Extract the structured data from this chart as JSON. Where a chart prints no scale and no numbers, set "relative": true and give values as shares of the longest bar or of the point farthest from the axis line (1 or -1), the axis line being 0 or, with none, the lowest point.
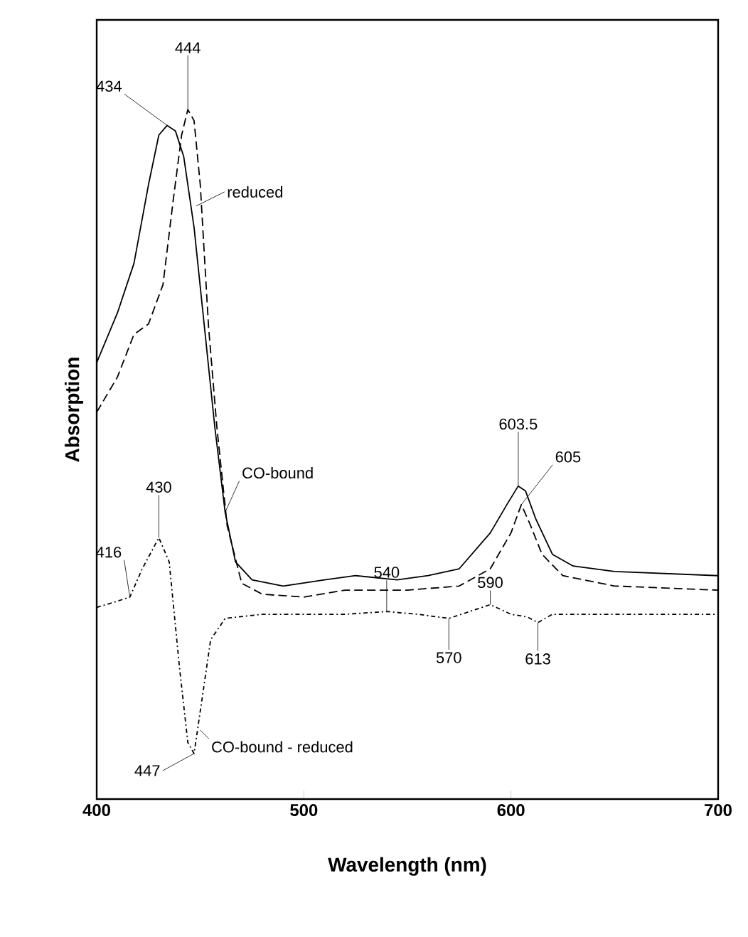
{
  "chart_data": {
    "type": "line",
    "relative": true,
    "xlabel": "Wavelength (nm)",
    "ylabel": "Absorption",
    "xlim": [
      400,
      700
    ],
    "xticks": [
      400,
      500,
      600,
      700
    ],
    "marker": "none",
    "series": [
      {
        "color": "#000000",
        "line_style": "solid",
        "x": [
          400,
          410,
          418,
          425,
          430,
          434,
          438,
          442,
          447,
          452,
          457,
          462,
          467,
          475,
          490,
          510,
          525,
          545,
          560,
          575,
          590,
          598,
          603.5,
          607,
          612,
          620,
          630,
          650,
          700
        ],
        "values": [
          0.633,
          0.705,
          0.777,
          0.891,
          0.963,
          0.977,
          0.969,
          0.932,
          0.829,
          0.685,
          0.54,
          0.416,
          0.344,
          0.318,
          0.309,
          0.318,
          0.324,
          0.318,
          0.324,
          0.334,
          0.386,
          0.427,
          0.454,
          0.447,
          0.406,
          0.355,
          0.338,
          0.33,
          0.324
        ]
      },
      {
        "color": "#000000",
        "line_style": "dashed",
        "x": [
          400,
          410,
          418,
          425,
          432,
          437,
          441,
          444,
          447,
          450,
          454,
          458,
          463,
          470,
          480,
          500,
          520,
          550,
          575,
          590,
          600,
          605,
          609,
          615,
          625,
          650,
          700
        ],
        "values": [
          0.561,
          0.612,
          0.674,
          0.689,
          0.746,
          0.87,
          0.963,
          1.0,
          0.984,
          0.891,
          0.685,
          0.54,
          0.396,
          0.313,
          0.297,
          0.293,
          0.303,
          0.303,
          0.309,
          0.334,
          0.386,
          0.427,
          0.4,
          0.355,
          0.324,
          0.309,
          0.303
        ]
      },
      {
        "color": "#000000",
        "line_style": "dotted",
        "x": [
          400,
          410,
          416,
          422,
          430,
          435,
          440,
          444,
          447,
          451,
          455,
          462,
          480,
          520,
          540,
          555,
          570,
          580,
          590,
          600,
          608,
          613,
          620,
          650,
          700
        ],
        "values": [
          0.278,
          0.287,
          0.293,
          0.334,
          0.379,
          0.344,
          0.19,
          0.082,
          0.066,
          0.148,
          0.231,
          0.262,
          0.268,
          0.268,
          0.272,
          0.268,
          0.262,
          0.272,
          0.282,
          0.268,
          0.264,
          0.256,
          0.268,
          0.268,
          0.268
        ]
      }
    ],
    "annotations": [
      {
        "text": "434",
        "x": 434,
        "y": 0.977
      },
      {
        "text": "444",
        "x": 444,
        "y": 1.0
      },
      {
        "text": "reduced",
        "x": 448,
        "y": 0.86
      },
      {
        "text": "603.5",
        "x": 603.5,
        "y": 0.454
      },
      {
        "text": "605",
        "x": 605,
        "y": 0.427
      },
      {
        "text": "CO-bound",
        "x": 462,
        "y": 0.416
      },
      {
        "text": "430",
        "x": 430,
        "y": 0.379
      },
      {
        "text": "416",
        "x": 416,
        "y": 0.293
      },
      {
        "text": "540",
        "x": 540,
        "y": 0.272
      },
      {
        "text": "590",
        "x": 590,
        "y": 0.282
      },
      {
        "text": "570",
        "x": 570,
        "y": 0.262
      },
      {
        "text": "613",
        "x": 613,
        "y": 0.256
      },
      {
        "text": "447",
        "x": 447,
        "y": 0.066
      },
      {
        "text": "CO-bound - reduced",
        "x": 450,
        "y": 0.1
      }
    ]
  }
}
